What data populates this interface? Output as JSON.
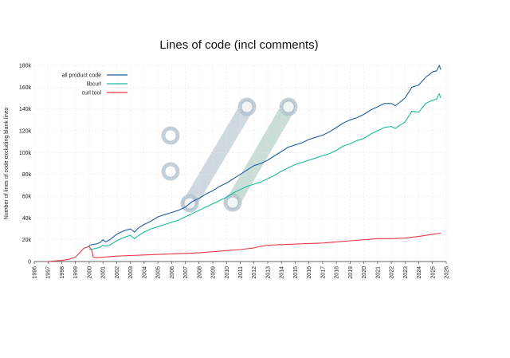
{
  "chart_data": {
    "type": "line",
    "title": "Lines of code (incl comments)",
    "xlabel": "",
    "ylabel": "Number of lines of code excluding blank lines",
    "xlim": [
      1996,
      2026
    ],
    "ylim": [
      0,
      180000
    ],
    "x_ticks": [
      "1996",
      "1997",
      "1998",
      "1999",
      "2000",
      "2001",
      "2002",
      "2003",
      "2004",
      "2005",
      "2006",
      "2007",
      "2008",
      "2009",
      "2010",
      "2011",
      "2012",
      "2013",
      "2014",
      "2015",
      "2016",
      "2017",
      "2018",
      "2019",
      "2020",
      "2021",
      "2022",
      "2023",
      "2024",
      "2025",
      "2026"
    ],
    "y_ticks": [
      {
        "value": 0,
        "label": "0"
      },
      {
        "value": 20000,
        "label": "20k"
      },
      {
        "value": 40000,
        "label": "40k"
      },
      {
        "value": 60000,
        "label": "60k"
      },
      {
        "value": 80000,
        "label": "80k"
      },
      {
        "value": 100000,
        "label": "100k"
      },
      {
        "value": 120000,
        "label": "120k"
      },
      {
        "value": 140000,
        "label": "140k"
      },
      {
        "value": 160000,
        "label": "160k"
      },
      {
        "value": 180000,
        "label": "180k"
      }
    ],
    "grid": true,
    "legend_position": "top-left",
    "series": [
      {
        "name": "all product code",
        "color": "#1f5fa0",
        "points": [
          [
            2000.0,
            15000
          ],
          [
            2000.5,
            16000
          ],
          [
            2000.8,
            17500
          ],
          [
            2001.0,
            20000
          ],
          [
            2001.2,
            18000
          ],
          [
            2001.5,
            20000
          ],
          [
            2002.0,
            25000
          ],
          [
            2002.5,
            28000
          ],
          [
            2003.0,
            30000
          ],
          [
            2003.3,
            27000
          ],
          [
            2003.6,
            31000
          ],
          [
            2004.0,
            34000
          ],
          [
            2004.5,
            37000
          ],
          [
            2005.0,
            41000
          ],
          [
            2005.5,
            43000
          ],
          [
            2006.0,
            45000
          ],
          [
            2006.5,
            47000
          ],
          [
            2007.0,
            50000
          ],
          [
            2007.5,
            55000
          ],
          [
            2008.0,
            58000
          ],
          [
            2008.5,
            62000
          ],
          [
            2009.0,
            65000
          ],
          [
            2009.5,
            69000
          ],
          [
            2010.0,
            72000
          ],
          [
            2010.5,
            76000
          ],
          [
            2011.0,
            80000
          ],
          [
            2011.5,
            84000
          ],
          [
            2012.0,
            88000
          ],
          [
            2012.5,
            90000
          ],
          [
            2013.0,
            93000
          ],
          [
            2013.5,
            97000
          ],
          [
            2014.0,
            101000
          ],
          [
            2014.5,
            105000
          ],
          [
            2015.0,
            107000
          ],
          [
            2015.5,
            109000
          ],
          [
            2016.0,
            112000
          ],
          [
            2016.5,
            114000
          ],
          [
            2017.0,
            116000
          ],
          [
            2017.5,
            119000
          ],
          [
            2018.0,
            123000
          ],
          [
            2018.5,
            127000
          ],
          [
            2019.0,
            130000
          ],
          [
            2019.5,
            132000
          ],
          [
            2020.0,
            135000
          ],
          [
            2020.5,
            139000
          ],
          [
            2021.0,
            142000
          ],
          [
            2021.5,
            145000
          ],
          [
            2022.0,
            145000
          ],
          [
            2022.3,
            143000
          ],
          [
            2022.6,
            146000
          ],
          [
            2023.0,
            150000
          ],
          [
            2023.5,
            160000
          ],
          [
            2024.0,
            162000
          ],
          [
            2024.5,
            169000
          ],
          [
            2025.0,
            174000
          ],
          [
            2025.3,
            175000
          ],
          [
            2025.5,
            180000
          ],
          [
            2025.6,
            176000
          ]
        ]
      },
      {
        "name": "libcurl",
        "color": "#1abc9c",
        "points": [
          [
            2000.0,
            11000
          ],
          [
            2000.5,
            12000
          ],
          [
            2000.8,
            13000
          ],
          [
            2001.0,
            15000
          ],
          [
            2001.2,
            14000
          ],
          [
            2001.5,
            15000
          ],
          [
            2002.0,
            19000
          ],
          [
            2002.5,
            22000
          ],
          [
            2003.0,
            24000
          ],
          [
            2003.3,
            21000
          ],
          [
            2003.6,
            24000
          ],
          [
            2004.0,
            27000
          ],
          [
            2004.5,
            30000
          ],
          [
            2005.0,
            32000
          ],
          [
            2005.5,
            34000
          ],
          [
            2006.0,
            36000
          ],
          [
            2006.5,
            38000
          ],
          [
            2007.0,
            41000
          ],
          [
            2007.5,
            44000
          ],
          [
            2008.0,
            47000
          ],
          [
            2008.5,
            50000
          ],
          [
            2009.0,
            53000
          ],
          [
            2009.5,
            56000
          ],
          [
            2010.0,
            59000
          ],
          [
            2010.5,
            63000
          ],
          [
            2011.0,
            66000
          ],
          [
            2011.5,
            69000
          ],
          [
            2012.0,
            71000
          ],
          [
            2012.5,
            73000
          ],
          [
            2013.0,
            76000
          ],
          [
            2013.5,
            79000
          ],
          [
            2014.0,
            83000
          ],
          [
            2014.5,
            86000
          ],
          [
            2015.0,
            89000
          ],
          [
            2015.5,
            91000
          ],
          [
            2016.0,
            93000
          ],
          [
            2016.5,
            95000
          ],
          [
            2017.0,
            97000
          ],
          [
            2017.5,
            99000
          ],
          [
            2018.0,
            102000
          ],
          [
            2018.5,
            106000
          ],
          [
            2019.0,
            108000
          ],
          [
            2019.5,
            111000
          ],
          [
            2020.0,
            113000
          ],
          [
            2020.5,
            117000
          ],
          [
            2021.0,
            120000
          ],
          [
            2021.5,
            123000
          ],
          [
            2022.0,
            124000
          ],
          [
            2022.3,
            122000
          ],
          [
            2022.6,
            125000
          ],
          [
            2023.0,
            128000
          ],
          [
            2023.5,
            138000
          ],
          [
            2024.0,
            137000
          ],
          [
            2024.5,
            145000
          ],
          [
            2025.0,
            148000
          ],
          [
            2025.3,
            149000
          ],
          [
            2025.5,
            154000
          ],
          [
            2025.6,
            150000
          ]
        ]
      },
      {
        "name": "curl tool",
        "color": "#e63946",
        "points": [
          [
            1997.0,
            0
          ],
          [
            1997.5,
            500
          ],
          [
            1998.0,
            1000
          ],
          [
            1998.5,
            2000
          ],
          [
            1999.0,
            4000
          ],
          [
            1999.3,
            8000
          ],
          [
            1999.6,
            12000
          ],
          [
            2000.0,
            14000
          ],
          [
            2000.2,
            10000
          ],
          [
            2000.3,
            4000
          ],
          [
            2000.5,
            3500
          ],
          [
            2001.0,
            4000
          ],
          [
            2001.5,
            4500
          ],
          [
            2002.0,
            5000
          ],
          [
            2003.0,
            5500
          ],
          [
            2004.0,
            6000
          ],
          [
            2005.0,
            6500
          ],
          [
            2006.0,
            7000
          ],
          [
            2007.0,
            7500
          ],
          [
            2008.0,
            8000
          ],
          [
            2009.0,
            9000
          ],
          [
            2010.0,
            10000
          ],
          [
            2011.0,
            11000
          ],
          [
            2012.0,
            12500
          ],
          [
            2012.5,
            14000
          ],
          [
            2013.0,
            15000
          ],
          [
            2014.0,
            15500
          ],
          [
            2015.0,
            16000
          ],
          [
            2016.0,
            16500
          ],
          [
            2017.0,
            17000
          ],
          [
            2018.0,
            18000
          ],
          [
            2019.0,
            19000
          ],
          [
            2020.0,
            20000
          ],
          [
            2021.0,
            21000
          ],
          [
            2022.0,
            21000
          ],
          [
            2023.0,
            21500
          ],
          [
            2024.0,
            23000
          ],
          [
            2025.0,
            25000
          ],
          [
            2025.6,
            26000
          ]
        ]
      }
    ]
  },
  "watermark": {
    "description": "curl logo",
    "color": "#b0c0cc"
  }
}
